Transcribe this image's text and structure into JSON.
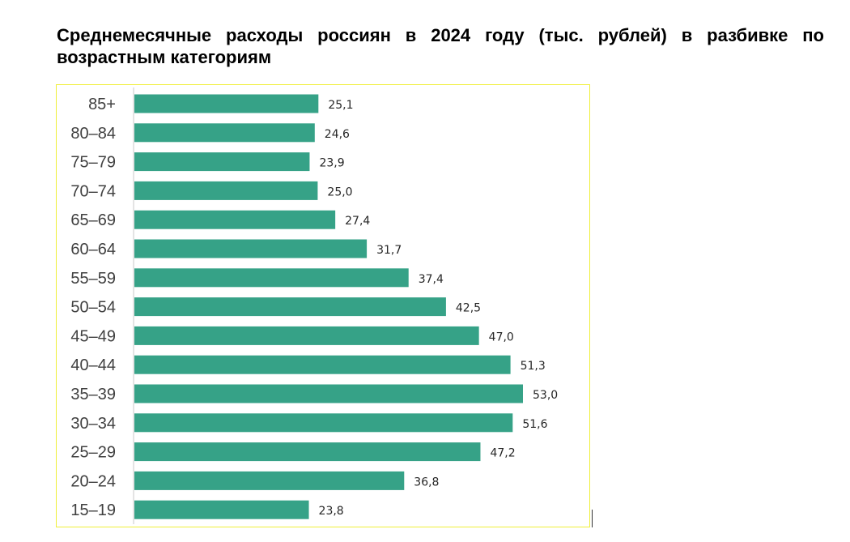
{
  "page": {
    "title": "Среднемесячные расходы россиян в 2024 году (тыс. рублей) в разбивке по возрастным категориям"
  },
  "colors": {
    "bar": "#36a287",
    "frame": "#f0ef3a",
    "axis": "#c8c8c8"
  },
  "chart_data": {
    "type": "bar",
    "orientation": "horizontal",
    "title": "Среднемесячные расходы россиян в 2024 году (тыс. рублей) в разбивке по возрастным категориям",
    "categories": [
      "85+",
      "80–84",
      "75–79",
      "70–74",
      "65–69",
      "60–64",
      "55–59",
      "50–54",
      "45–49",
      "40–44",
      "35–39",
      "30–34",
      "25–29",
      "20–24",
      "15–19"
    ],
    "values": [
      25.1,
      24.6,
      23.9,
      25.0,
      27.4,
      31.7,
      37.4,
      42.5,
      47.0,
      51.3,
      53.0,
      51.6,
      47.2,
      36.8,
      23.8
    ],
    "value_labels": [
      "25,1",
      "24,6",
      "23,9",
      "25,0",
      "27,4",
      "31,7",
      "37,4",
      "42,5",
      "47,0",
      "51,3",
      "53,0",
      "51,6",
      "47,2",
      "36,8",
      "23,8"
    ],
    "xlabel": "",
    "ylabel": "",
    "xlim": [
      0,
      53.0
    ],
    "grid": false,
    "legend": "none"
  }
}
